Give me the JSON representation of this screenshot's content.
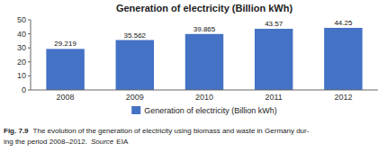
{
  "chart_data": {
    "type": "bar",
    "title": "Generation of electricity (Billion kWh)",
    "categories": [
      "2008",
      "2009",
      "2010",
      "2011",
      "2012"
    ],
    "series": [
      {
        "name": "Generation of electricity (Billion kWh)",
        "color": "#4472C4",
        "values": [
          29.219,
          35.562,
          39.865,
          43.57,
          44.25
        ]
      }
    ],
    "ylim": [
      0,
      50
    ],
    "yticks": [
      0,
      10,
      20,
      30,
      40,
      50
    ],
    "data_labels": true,
    "legend": "bottom",
    "annotations": [
      "Fig. 7.9",
      "The evolution of the generation of electricity using biomass and waste in Germany dur-",
      "ing the period 2008–2012.",
      "Source",
      "EIA"
    ]
  }
}
